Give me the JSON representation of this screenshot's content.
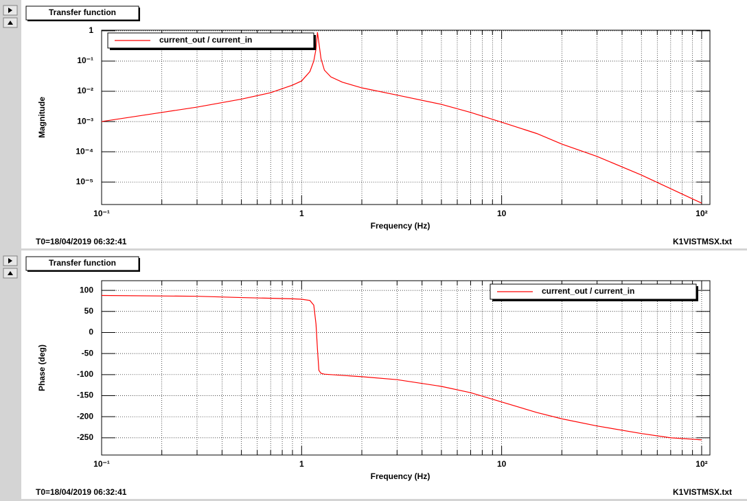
{
  "chart_data": [
    {
      "type": "line",
      "title": "Transfer function",
      "xlabel": "Frequency (Hz)",
      "ylabel": "Magnitude",
      "footer_left": "T0=18/04/2019 06:32:41",
      "footer_right": "K1VISTMSX.txt",
      "xscale": "log",
      "yscale": "log",
      "grid": true,
      "legend": "upper left",
      "xlim": [
        0.1,
        110
      ],
      "ylim": [
        1.8e-06,
        1.05
      ],
      "xticks": [
        {
          "value": 0.1,
          "label": "10⁻¹"
        },
        1,
        10,
        {
          "value": 100,
          "label": "10²"
        }
      ],
      "xminorticks": [
        0.2,
        0.3,
        0.4,
        0.5,
        0.6,
        0.7,
        0.8,
        0.9,
        2,
        3,
        4,
        5,
        6,
        7,
        8,
        9,
        20,
        30,
        40,
        50,
        60,
        70,
        80,
        90
      ],
      "yticks": [
        1,
        {
          "value": 0.1,
          "label": "10⁻¹"
        },
        {
          "value": 0.01,
          "label": "10⁻²"
        },
        {
          "value": 0.001,
          "label": "10⁻³"
        },
        {
          "value": 0.0001,
          "label": "10⁻⁴"
        },
        {
          "value": 1e-05,
          "label": "10⁻⁵"
        }
      ],
      "x": [
        0.1,
        0.2,
        0.3,
        0.5,
        0.7,
        0.9,
        1,
        1.1,
        1.15,
        1.18,
        1.2,
        1.22,
        1.25,
        1.3,
        1.4,
        1.6,
        2,
        3,
        5,
        7,
        10,
        15,
        20,
        30,
        50,
        70,
        100
      ],
      "series": [
        {
          "name": "current_out / current_in",
          "color": "#ff0000",
          "values": [
            0.001,
            0.002,
            0.003,
            0.0055,
            0.009,
            0.016,
            0.022,
            0.045,
            0.1,
            0.25,
            0.9,
            0.4,
            0.12,
            0.05,
            0.03,
            0.02,
            0.013,
            0.0075,
            0.0037,
            0.002,
            0.00095,
            0.0004,
            0.00018,
            7e-05,
            1.7e-05,
            6e-06,
            2e-06
          ]
        }
      ]
    },
    {
      "type": "line",
      "title": "Transfer function",
      "xlabel": "Frequency (Hz)",
      "ylabel": "Phase (deg)",
      "footer_left": "T0=18/04/2019 06:32:41",
      "footer_right": "K1VISTMSX.txt",
      "xscale": "log",
      "yscale": "linear",
      "grid": true,
      "legend": "upper right",
      "xlim": [
        0.1,
        110
      ],
      "ylim": [
        -291,
        123
      ],
      "xticks": [
        {
          "value": 0.1,
          "label": "10⁻¹"
        },
        1,
        10,
        {
          "value": 100,
          "label": "10²"
        }
      ],
      "xminorticks": [
        0.2,
        0.3,
        0.4,
        0.5,
        0.6,
        0.7,
        0.8,
        0.9,
        2,
        3,
        4,
        5,
        6,
        7,
        8,
        9,
        20,
        30,
        40,
        50,
        60,
        70,
        80,
        90
      ],
      "yticks": [
        100,
        50,
        0,
        -50,
        -100,
        -150,
        -200,
        -250
      ],
      "x": [
        0.1,
        0.3,
        0.5,
        0.9,
        1,
        1.1,
        1.15,
        1.18,
        1.2,
        1.22,
        1.25,
        1.3,
        1.5,
        2,
        3,
        5,
        7,
        10,
        15,
        20,
        30,
        50,
        70,
        100
      ],
      "series": [
        {
          "name": "current_out / current_in",
          "color": "#ff0000",
          "values": [
            88,
            86,
            83,
            80,
            79,
            76,
            65,
            20,
            -40,
            -90,
            -97,
            -99,
            -101,
            -105,
            -112,
            -128,
            -143,
            -165,
            -190,
            -205,
            -222,
            -240,
            -250,
            -255
          ]
        }
      ]
    }
  ]
}
